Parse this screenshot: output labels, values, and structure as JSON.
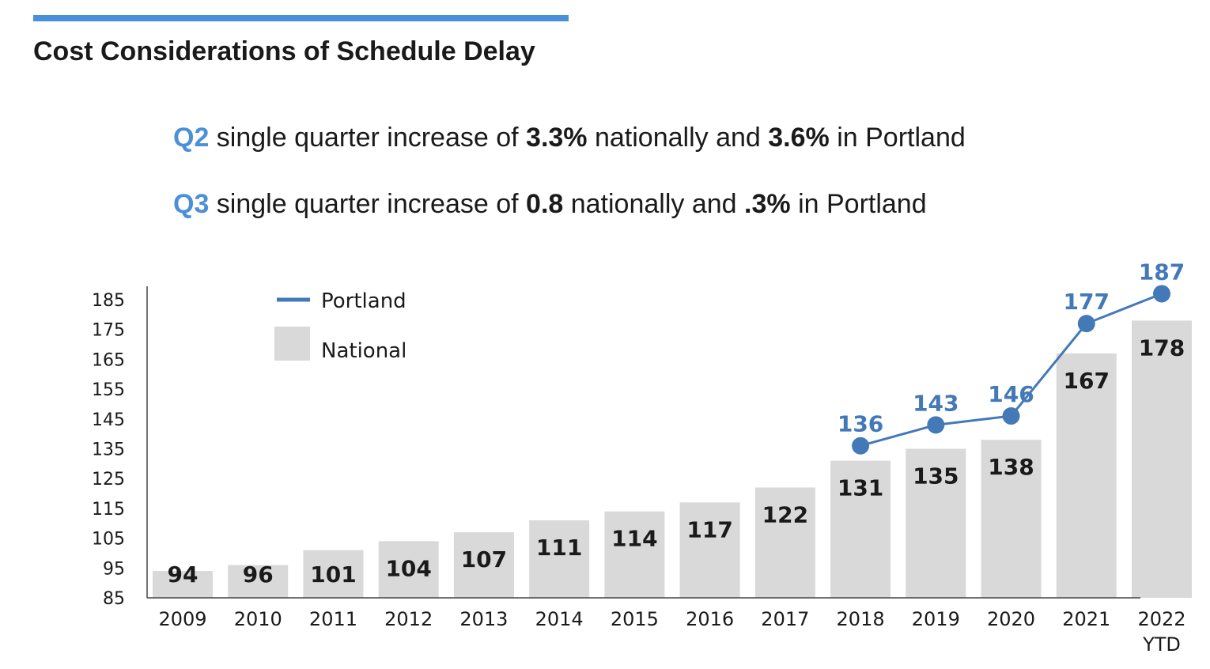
{
  "header": {
    "title": "Cost Considerations of Schedule Delay",
    "accent_color": "#4a90d9"
  },
  "statements": [
    {
      "quarter": "Q2",
      "text1": " single quarter increase of ",
      "national": "3.3%",
      "text2": " nationally and ",
      "portland": "3.6%",
      "text3": " in Portland"
    },
    {
      "quarter": "Q3",
      "text1": " single quarter increase of ",
      "national": "0.8",
      "text2": " nationally and ",
      "portland": ".3%",
      "text3": " in Portland"
    }
  ],
  "chart_data": {
    "type": "bar",
    "categories": [
      "2009",
      "2010",
      "2011",
      "2012",
      "2013",
      "2014",
      "2015",
      "2016",
      "2017",
      "2018",
      "2019",
      "2020",
      "2021",
      "2022"
    ],
    "category_sublabels": {
      "2022": "YTD"
    },
    "series": [
      {
        "name": "National",
        "type": "bar",
        "color": "#d9d9d9",
        "values": [
          94,
          96,
          101,
          104,
          107,
          111,
          114,
          117,
          122,
          131,
          135,
          138,
          167,
          178
        ]
      },
      {
        "name": "Portland",
        "type": "line",
        "color": "#4479b8",
        "values": [
          null,
          null,
          null,
          null,
          null,
          null,
          null,
          null,
          null,
          136,
          143,
          146,
          177,
          187
        ]
      }
    ],
    "yticks": [
      85,
      95,
      105,
      115,
      125,
      135,
      145,
      155,
      165,
      175,
      185
    ],
    "ylim": [
      85,
      190
    ],
    "legend": [
      "Portland",
      "National"
    ],
    "legend_position": "top-left"
  }
}
